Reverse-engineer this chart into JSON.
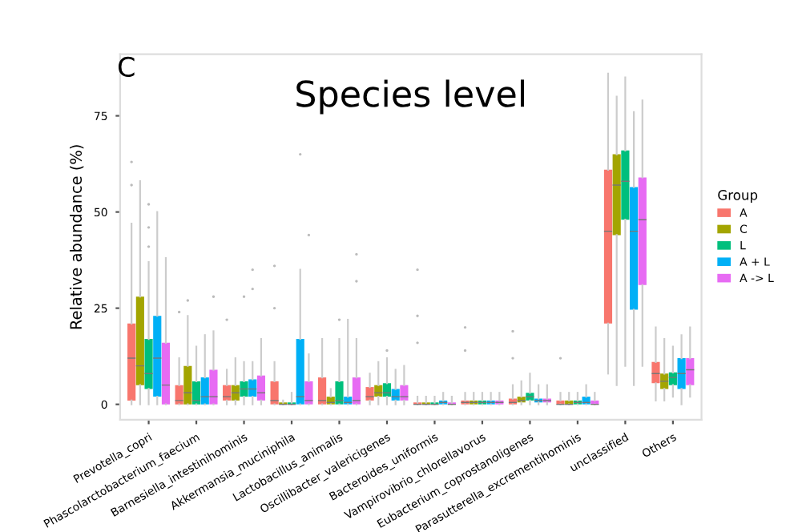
{
  "chart_data": {
    "type": "box",
    "title": "Species level",
    "ylabel": "Relative abundance (%)",
    "legend_title": "Group",
    "legend": "right",
    "grid": false,
    "annotations": [
      "C"
    ],
    "categories": [
      "Prevotella_copri",
      "Phascolarctobacterium_faecium",
      "Barnesiella_intestinihominis",
      "Akkermansia_muciniphila",
      "Lactobacillus_animalis",
      "Oscillibacter_valericigenes",
      "Bacteroides_uniformis",
      "Vampirovibrio_chlorellavorus",
      "Eubacterium_coprostanoligenes",
      "Parasutterella_excrementihominis",
      "unclassified",
      "Others"
    ],
    "ylim": [
      -4,
      91
    ],
    "yticks": [
      0,
      25,
      50,
      75
    ],
    "series": [
      {
        "name": "A",
        "color": "#f8766d",
        "boxes": [
          {
            "low": 0,
            "q1": 1,
            "median": 12,
            "q3": 21,
            "high": 47,
            "outliers": [
              57,
              63
            ]
          },
          {
            "low": 0,
            "q1": 0,
            "median": 1,
            "q3": 5,
            "high": 12,
            "outliers": [
              24
            ]
          },
          {
            "low": 0,
            "q1": 1,
            "median": 2,
            "q3": 5,
            "high": 9,
            "outliers": [
              22
            ]
          },
          {
            "low": 0,
            "q1": 0,
            "median": 1,
            "q3": 6,
            "high": 11,
            "outliers": [
              25,
              36
            ]
          },
          {
            "low": 0,
            "q1": 0,
            "median": 1,
            "q3": 7,
            "high": 17
          },
          {
            "low": 0,
            "q1": 1,
            "median": 2,
            "q3": 4.5,
            "high": 8
          },
          {
            "low": 0,
            "q1": 0,
            "median": 0,
            "q3": 0.5,
            "high": 2,
            "outliers": [
              16,
              23,
              35
            ]
          },
          {
            "low": 0,
            "q1": 0,
            "median": 0.5,
            "q3": 1,
            "high": 3,
            "outliers": [
              14,
              20
            ]
          },
          {
            "low": 0,
            "q1": 0,
            "median": 0.5,
            "q3": 1.5,
            "high": 5,
            "outliers": [
              12,
              19
            ]
          },
          {
            "low": 0,
            "q1": 0,
            "median": 0,
            "q3": 1,
            "high": 3,
            "outliers": [
              12
            ]
          },
          {
            "low": 8,
            "q1": 21,
            "median": 45,
            "q3": 61,
            "high": 86
          },
          {
            "low": 1,
            "q1": 5.5,
            "median": 8,
            "q3": 11,
            "high": 20
          }
        ]
      },
      {
        "name": "C",
        "color": "#a3a500",
        "boxes": [
          {
            "low": 0,
            "q1": 5,
            "median": 10,
            "q3": 28,
            "high": 58
          },
          {
            "low": 0,
            "q1": 0,
            "median": 3,
            "q3": 10,
            "high": 23,
            "outliers": [
              27
            ]
          },
          {
            "low": 0,
            "q1": 1,
            "median": 3,
            "q3": 5,
            "high": 12
          },
          {
            "low": 0,
            "q1": 0,
            "median": 0,
            "q3": 0.5,
            "high": 1
          },
          {
            "low": 0,
            "q1": 0,
            "median": 0.5,
            "q3": 2,
            "high": 4
          },
          {
            "low": 0,
            "q1": 2,
            "median": 3,
            "q3": 5,
            "high": 11
          },
          {
            "low": 0,
            "q1": 0,
            "median": 0,
            "q3": 0.5,
            "high": 2
          },
          {
            "low": 0,
            "q1": 0,
            "median": 0.5,
            "q3": 1,
            "high": 3
          },
          {
            "low": 0,
            "q1": 0.5,
            "median": 1,
            "q3": 2,
            "high": 6
          },
          {
            "low": 0,
            "q1": 0,
            "median": 0,
            "q3": 1,
            "high": 3
          },
          {
            "low": 5,
            "q1": 44,
            "median": 57,
            "q3": 65,
            "high": 80
          },
          {
            "low": 1,
            "q1": 4,
            "median": 6,
            "q3": 8,
            "high": 17
          }
        ]
      },
      {
        "name": "L",
        "color": "#00bf7d",
        "boxes": [
          {
            "low": 0,
            "q1": 4,
            "median": 8,
            "q3": 17,
            "high": 37,
            "outliers": [
              41,
              46,
              52
            ]
          },
          {
            "low": 0,
            "q1": 0,
            "median": 1,
            "q3": 6,
            "high": 15
          },
          {
            "low": 0,
            "q1": 2,
            "median": 4,
            "q3": 6,
            "high": 11,
            "outliers": [
              28
            ]
          },
          {
            "low": 0,
            "q1": 0,
            "median": 0,
            "q3": 0.5,
            "high": 3
          },
          {
            "low": 0,
            "q1": 0,
            "median": 1,
            "q3": 6,
            "high": 17,
            "outliers": [
              22
            ]
          },
          {
            "low": 0,
            "q1": 2,
            "median": 3,
            "q3": 5.5,
            "high": 12,
            "outliers": [
              14
            ]
          },
          {
            "low": 0,
            "q1": 0,
            "median": 0,
            "q3": 0.5,
            "high": 2
          },
          {
            "low": 0,
            "q1": 0,
            "median": 0.5,
            "q3": 1,
            "high": 3
          },
          {
            "low": 0,
            "q1": 1,
            "median": 2,
            "q3": 3,
            "high": 8
          },
          {
            "low": 0,
            "q1": 0,
            "median": 0.5,
            "q3": 1,
            "high": 3
          },
          {
            "low": 10,
            "q1": 48,
            "median": 58,
            "q3": 66,
            "high": 85
          },
          {
            "low": 2,
            "q1": 5,
            "median": 7,
            "q3": 8.3,
            "high": 15
          }
        ]
      },
      {
        "name": "A + L",
        "color": "#00b0f6",
        "boxes": [
          {
            "low": 0,
            "q1": 2,
            "median": 12,
            "q3": 23,
            "high": 50
          },
          {
            "low": 0,
            "q1": 0,
            "median": 2,
            "q3": 7,
            "high": 18
          },
          {
            "low": 0,
            "q1": 2,
            "median": 4,
            "q3": 6.5,
            "high": 11,
            "outliers": [
              30,
              35
            ]
          },
          {
            "low": 0,
            "q1": 0,
            "median": 2,
            "q3": 17,
            "high": 35,
            "outliers": [
              65
            ]
          },
          {
            "low": 0,
            "q1": 0,
            "median": 0.5,
            "q3": 2,
            "high": 22
          },
          {
            "low": 0,
            "q1": 1,
            "median": 2,
            "q3": 4,
            "high": 9
          },
          {
            "low": 0,
            "q1": 0,
            "median": 0.5,
            "q3": 1,
            "high": 3
          },
          {
            "low": 0,
            "q1": 0,
            "median": 0.5,
            "q3": 1,
            "high": 3
          },
          {
            "low": 0,
            "q1": 0.5,
            "median": 1,
            "q3": 1.5,
            "high": 5
          },
          {
            "low": 0,
            "q1": 0,
            "median": 0.5,
            "q3": 2,
            "high": 5
          },
          {
            "low": 5,
            "q1": 24.6,
            "median": 45,
            "q3": 56.5,
            "high": 76
          },
          {
            "low": 0,
            "q1": 4,
            "median": 8,
            "q3": 12,
            "high": 18
          }
        ]
      },
      {
        "name": "A -> L",
        "color": "#e76bf3",
        "boxes": [
          {
            "low": 0,
            "q1": 0,
            "median": 5,
            "q3": 16,
            "high": 38
          },
          {
            "low": 0,
            "q1": 0,
            "median": 2,
            "q3": 9,
            "high": 19,
            "outliers": [
              28
            ]
          },
          {
            "low": 0,
            "q1": 1,
            "median": 3,
            "q3": 7.5,
            "high": 17
          },
          {
            "low": 0,
            "q1": 0,
            "median": 1,
            "q3": 6,
            "high": 13,
            "outliers": [
              44
            ]
          },
          {
            "low": 0,
            "q1": 0,
            "median": 1,
            "q3": 7,
            "high": 17,
            "outliers": [
              32,
              39
            ]
          },
          {
            "low": 0,
            "q1": 1,
            "median": 2,
            "q3": 5,
            "high": 10
          },
          {
            "low": 0,
            "q1": 0,
            "median": 0,
            "q3": 0.5,
            "high": 2
          },
          {
            "low": 0,
            "q1": 0,
            "median": 0.5,
            "q3": 1,
            "high": 3
          },
          {
            "low": 0,
            "q1": 0.5,
            "median": 1,
            "q3": 1.5,
            "high": 5
          },
          {
            "low": 0,
            "q1": 0,
            "median": 0,
            "q3": 1,
            "high": 3
          },
          {
            "low": 10,
            "q1": 31,
            "median": 48,
            "q3": 59,
            "high": 79
          },
          {
            "low": 2,
            "q1": 5,
            "median": 9,
            "q3": 12,
            "high": 20
          }
        ]
      }
    ]
  }
}
